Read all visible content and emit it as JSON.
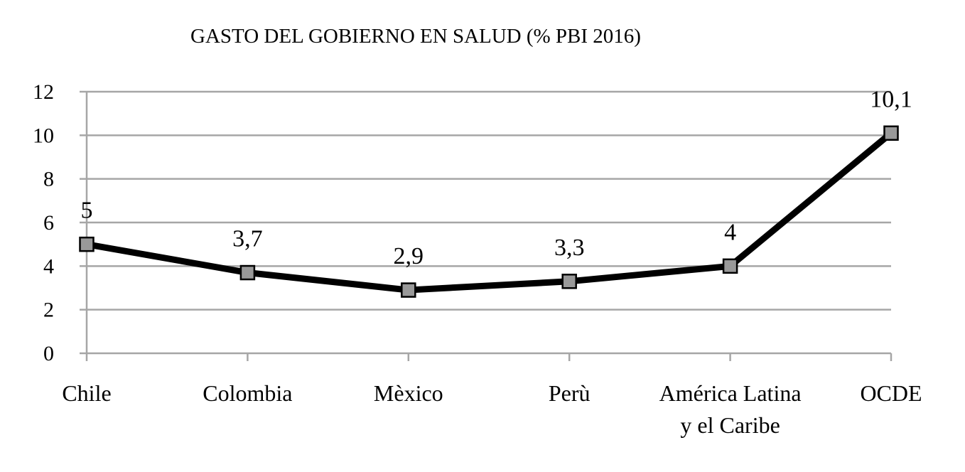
{
  "chart_data": {
    "type": "line",
    "title": "GASTO DEL GOBIERNO EN SALUD (% PBI 2016)",
    "xlabel": "",
    "ylabel": "",
    "categories": [
      "Chile",
      "Colombia",
      "Mèxico",
      "Perù",
      "América Latina y el Caribe",
      "OCDE"
    ],
    "category_lines": [
      [
        "Chile"
      ],
      [
        "Colombia"
      ],
      [
        "Mèxico"
      ],
      [
        "Perù"
      ],
      [
        "América Latina",
        "y el Caribe"
      ],
      [
        "OCDE"
      ]
    ],
    "values": [
      5,
      3.7,
      2.9,
      3.3,
      4,
      10.1
    ],
    "data_labels": [
      "5",
      "3,7",
      "2,9",
      "3,3",
      "4",
      "10,1"
    ],
    "ylim": [
      0,
      12
    ],
    "yticks": [
      0,
      2,
      4,
      6,
      8,
      10,
      12
    ],
    "grid": true,
    "legend": "none",
    "colors": {
      "line": "#000000",
      "marker_fill": "#999999",
      "marker_stroke": "#000000",
      "grid": "#a6a6a6",
      "axis": "#a6a6a6"
    }
  }
}
